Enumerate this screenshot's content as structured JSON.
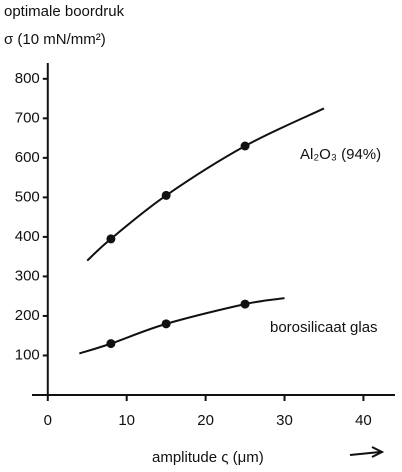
{
  "chart_data": {
    "type": "line",
    "ylabel_lines": [
      "optimale boordruk",
      "σ (10 mN/mm²)"
    ],
    "xlabel": "amplitude ς (μm)",
    "series": [
      {
        "name": "Al₂O₃ (94%)",
        "color": "#111111",
        "x": [
          5,
          8,
          15,
          25,
          35
        ],
        "values": [
          340,
          395,
          505,
          630,
          725
        ]
      },
      {
        "name": "borosilicaat glas",
        "color": "#111111",
        "x": [
          4,
          8,
          15,
          25,
          30
        ],
        "values": [
          105,
          130,
          180,
          230,
          245
        ]
      }
    ],
    "xlim": [
      -2,
      44
    ],
    "ylim": [
      0,
      840
    ],
    "xticks": [
      0,
      10,
      20,
      30,
      40
    ],
    "yticks": [
      100,
      200,
      300,
      400,
      500,
      600,
      700,
      800
    ]
  }
}
